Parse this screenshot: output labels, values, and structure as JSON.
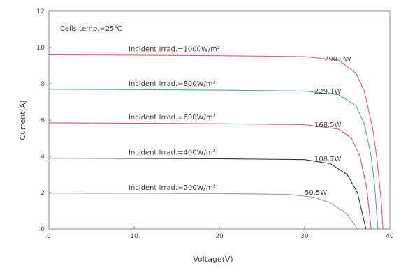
{
  "chart_data": {
    "type": "line",
    "xlabel": "Voltage(V)",
    "ylabel": "Current(A)",
    "xlim": [
      0,
      40
    ],
    "ylim": [
      0,
      12
    ],
    "xticks": [
      "0",
      "10",
      "20",
      "30",
      "40"
    ],
    "yticks": [
      "0",
      "2",
      "4",
      "6",
      "8",
      "10",
      "12"
    ],
    "note": "Cells temp.=25℃",
    "grid": false,
    "series": [
      {
        "name": "Incident Irrad.=1000W/m²",
        "power_label": "290.1W",
        "color": "#d9606f",
        "x": [
          0,
          10,
          20,
          30,
          34,
          36,
          37,
          38,
          38.5,
          39,
          39.2
        ],
        "y": [
          9.6,
          9.58,
          9.55,
          9.5,
          9.3,
          8.6,
          7.6,
          5.5,
          3.8,
          1.5,
          0
        ]
      },
      {
        "name": "Incident Irrad.=800W/m²",
        "power_label": "229.1W",
        "color": "#5aa88a",
        "x": [
          0,
          10,
          20,
          30,
          34,
          36,
          37,
          37.8,
          38.2,
          38.6
        ],
        "y": [
          7.7,
          7.68,
          7.65,
          7.6,
          7.4,
          6.8,
          5.8,
          4.0,
          2.5,
          0
        ]
      },
      {
        "name": "Incident Irrad.=600W/m²",
        "power_label": "168.5W",
        "color": "#c05a8a",
        "x": [
          0,
          10,
          20,
          30,
          34,
          35.5,
          36.5,
          37.3,
          37.8
        ],
        "y": [
          5.85,
          5.83,
          5.8,
          5.75,
          5.5,
          5.0,
          4.0,
          2.2,
          0
        ]
      },
      {
        "name": "Incident Irrad.=400W/m²",
        "power_label": "108.7W",
        "color": "#333333",
        "x": [
          0,
          10,
          20,
          30,
          33,
          35,
          36.2,
          37.2
        ],
        "y": [
          3.9,
          3.89,
          3.87,
          3.82,
          3.6,
          3.0,
          2.0,
          0
        ]
      },
      {
        "name": "Incident Irrad.=200W/m²",
        "power_label": "50.5W",
        "color": "#a0a0a0",
        "x": [
          0,
          10,
          20,
          28,
          31,
          33,
          35,
          36.2
        ],
        "y": [
          1.97,
          1.96,
          1.95,
          1.9,
          1.75,
          1.45,
          0.8,
          0
        ]
      }
    ]
  }
}
